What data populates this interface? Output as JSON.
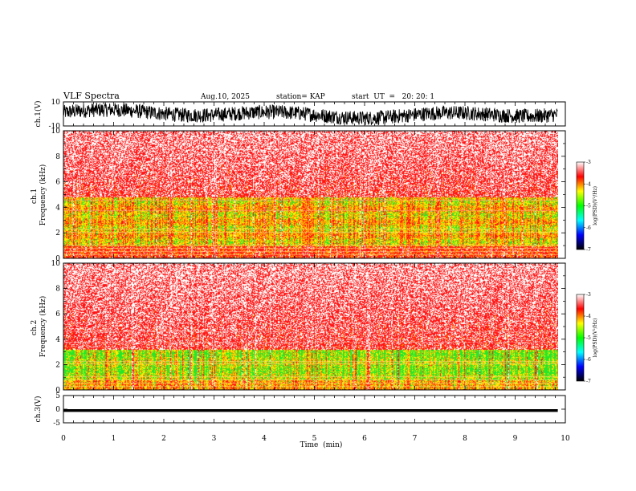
{
  "header": {
    "title": "VLF Spectra",
    "date": "Aug.10, 2025",
    "station": "station= KAP",
    "start_ut": "start  UT  =   20: 20: 1"
  },
  "colors": {
    "background": "#ffffff",
    "axis": "#000000",
    "colormap": [
      "#000000",
      "#0000ff",
      "#00ffff",
      "#00ff00",
      "#ffff00",
      "#ff0000",
      "#ffffff"
    ]
  },
  "chart_data": [
    {
      "type": "line",
      "name": "ch1-voltage",
      "ylabel": "ch.1(V)",
      "ylim": [
        -10,
        10
      ],
      "yticks": [
        10,
        -10
      ],
      "x_range_min": [
        0,
        9.85
      ],
      "note": "noisy waveform oscillating roughly between -8 and +8 V"
    },
    {
      "type": "heatmap",
      "name": "ch1-spectrogram",
      "ylabel": "ch.1\nFrequency (kHz)",
      "ylim": [
        0,
        10
      ],
      "yticks": [
        0,
        2,
        4,
        6,
        8,
        10
      ],
      "x_range_min": [
        0,
        9.85
      ],
      "colorbar": {
        "label": "log(PSD)(V²/Hz)",
        "range": [
          -7,
          -3
        ],
        "ticks": [
          -3,
          -4,
          -5,
          -6,
          -7
        ]
      },
      "bands": [
        {
          "from_khz": 0,
          "to_khz": 1.0,
          "dominant": "red"
        },
        {
          "from_khz": 1.0,
          "to_khz": 4.8,
          "dominant": "yellow/green"
        },
        {
          "from_khz": 4.8,
          "to_khz": 10,
          "dominant": "red/white"
        }
      ]
    },
    {
      "type": "heatmap",
      "name": "ch2-spectrogram",
      "ylabel": "ch.2\nFrequency (kHz)",
      "ylim": [
        0,
        10
      ],
      "yticks": [
        0,
        2,
        4,
        6,
        8,
        10
      ],
      "x_range_min": [
        0,
        9.85
      ],
      "colorbar": {
        "label": "log(PSD)(V²/Hz)",
        "range": [
          -7,
          -3
        ],
        "ticks": [
          -3,
          -4,
          -5,
          -6,
          -7
        ]
      },
      "bands": [
        {
          "from_khz": 0,
          "to_khz": 0.8,
          "dominant": "yellow"
        },
        {
          "from_khz": 0.8,
          "to_khz": 3.2,
          "dominant": "green"
        },
        {
          "from_khz": 3.2,
          "to_khz": 10,
          "dominant": "red/white"
        }
      ]
    },
    {
      "type": "line",
      "name": "ch3-voltage",
      "ylabel": "ch.3(V)",
      "ylim": [
        -5,
        5
      ],
      "yticks": [
        5,
        0,
        -5
      ],
      "x_range_min": [
        0,
        9.85
      ],
      "value_band": [
        -1,
        0
      ]
    }
  ],
  "xaxis": {
    "label": "Time  (min)",
    "xlim": [
      0,
      10
    ],
    "ticks": [
      "0",
      "1",
      "2",
      "3",
      "4",
      "5",
      "6",
      "7",
      "8",
      "9",
      "10"
    ]
  }
}
